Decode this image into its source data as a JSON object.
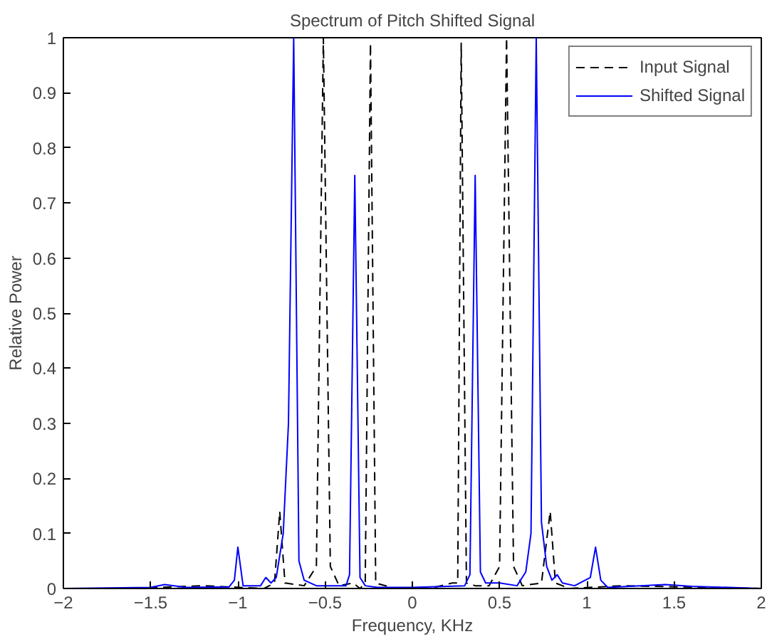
{
  "chart_data": {
    "type": "line",
    "title": "Spectrum of Pitch Shifted Signal",
    "xlabel": "Frequency, KHz",
    "ylabel": "Relative Power",
    "xlim": [
      -2,
      2
    ],
    "ylim": [
      0,
      1
    ],
    "xticks": [
      -2,
      -1.5,
      -1,
      -0.5,
      0,
      0.5,
      1,
      1.5,
      2
    ],
    "yticks": [
      0,
      0.1,
      0.2,
      0.3,
      0.4,
      0.5,
      0.6,
      0.7,
      0.8,
      0.9,
      1
    ],
    "grid": false,
    "legend": "top right",
    "marker": "none",
    "series": [
      {
        "name": "Input Signal",
        "color": "#000000",
        "line_style": "dashed",
        "x": [
          -2,
          -1.6,
          -1.2,
          -0.85,
          -0.79,
          -0.76,
          -0.73,
          -0.62,
          -0.55,
          -0.51,
          -0.47,
          -0.42,
          -0.34,
          -0.3,
          -0.27,
          -0.24,
          -0.21,
          -0.1,
          0.1,
          0.23,
          0.26,
          0.28,
          0.31,
          0.36,
          0.44,
          0.5,
          0.54,
          0.58,
          0.63,
          0.74,
          0.79,
          0.82,
          0.9,
          1.2,
          2
        ],
        "values": [
          0,
          0,
          0.005,
          0,
          0.01,
          0.14,
          0.01,
          0.005,
          0.04,
          1.0,
          0.04,
          0.005,
          0.01,
          0,
          0.01,
          0.99,
          0.01,
          0,
          0,
          0.01,
          0.01,
          0.99,
          0.01,
          0.005,
          0.005,
          0.04,
          1.0,
          0.04,
          0.005,
          0.01,
          0.14,
          0.01,
          0,
          0.005,
          0
        ]
      },
      {
        "name": "Shifted Signal",
        "color": "#0000ff",
        "line_style": "solid",
        "x": [
          -2,
          -1.5,
          -1.42,
          -1.3,
          -1.05,
          -1.02,
          -1.0,
          -0.97,
          -0.87,
          -0.84,
          -0.81,
          -0.78,
          -0.74,
          -0.71,
          -0.68,
          -0.65,
          -0.62,
          -0.55,
          -0.45,
          -0.38,
          -0.36,
          -0.33,
          -0.3,
          -0.27,
          -0.2,
          0,
          0.3,
          0.33,
          0.36,
          0.39,
          0.42,
          0.5,
          0.6,
          0.65,
          0.68,
          0.71,
          0.74,
          0.77,
          0.8,
          0.83,
          0.86,
          0.93,
          1.02,
          1.05,
          1.08,
          1.12,
          1.45,
          1.6,
          2
        ],
        "values": [
          0,
          0.002,
          0.007,
          0.002,
          0.003,
          0.015,
          0.075,
          0.005,
          0.005,
          0.02,
          0.01,
          0.02,
          0.1,
          0.3,
          1.0,
          0.05,
          0.015,
          0.005,
          0.005,
          0.005,
          0.025,
          0.75,
          0.02,
          0.005,
          0.002,
          0.002,
          0.005,
          0.025,
          0.75,
          0.03,
          0.01,
          0.01,
          0.005,
          0.03,
          0.1,
          1.0,
          0.12,
          0.04,
          0.015,
          0.025,
          0.01,
          0.005,
          0.02,
          0.075,
          0.015,
          0.002,
          0.007,
          0.004,
          0
        ]
      }
    ]
  }
}
